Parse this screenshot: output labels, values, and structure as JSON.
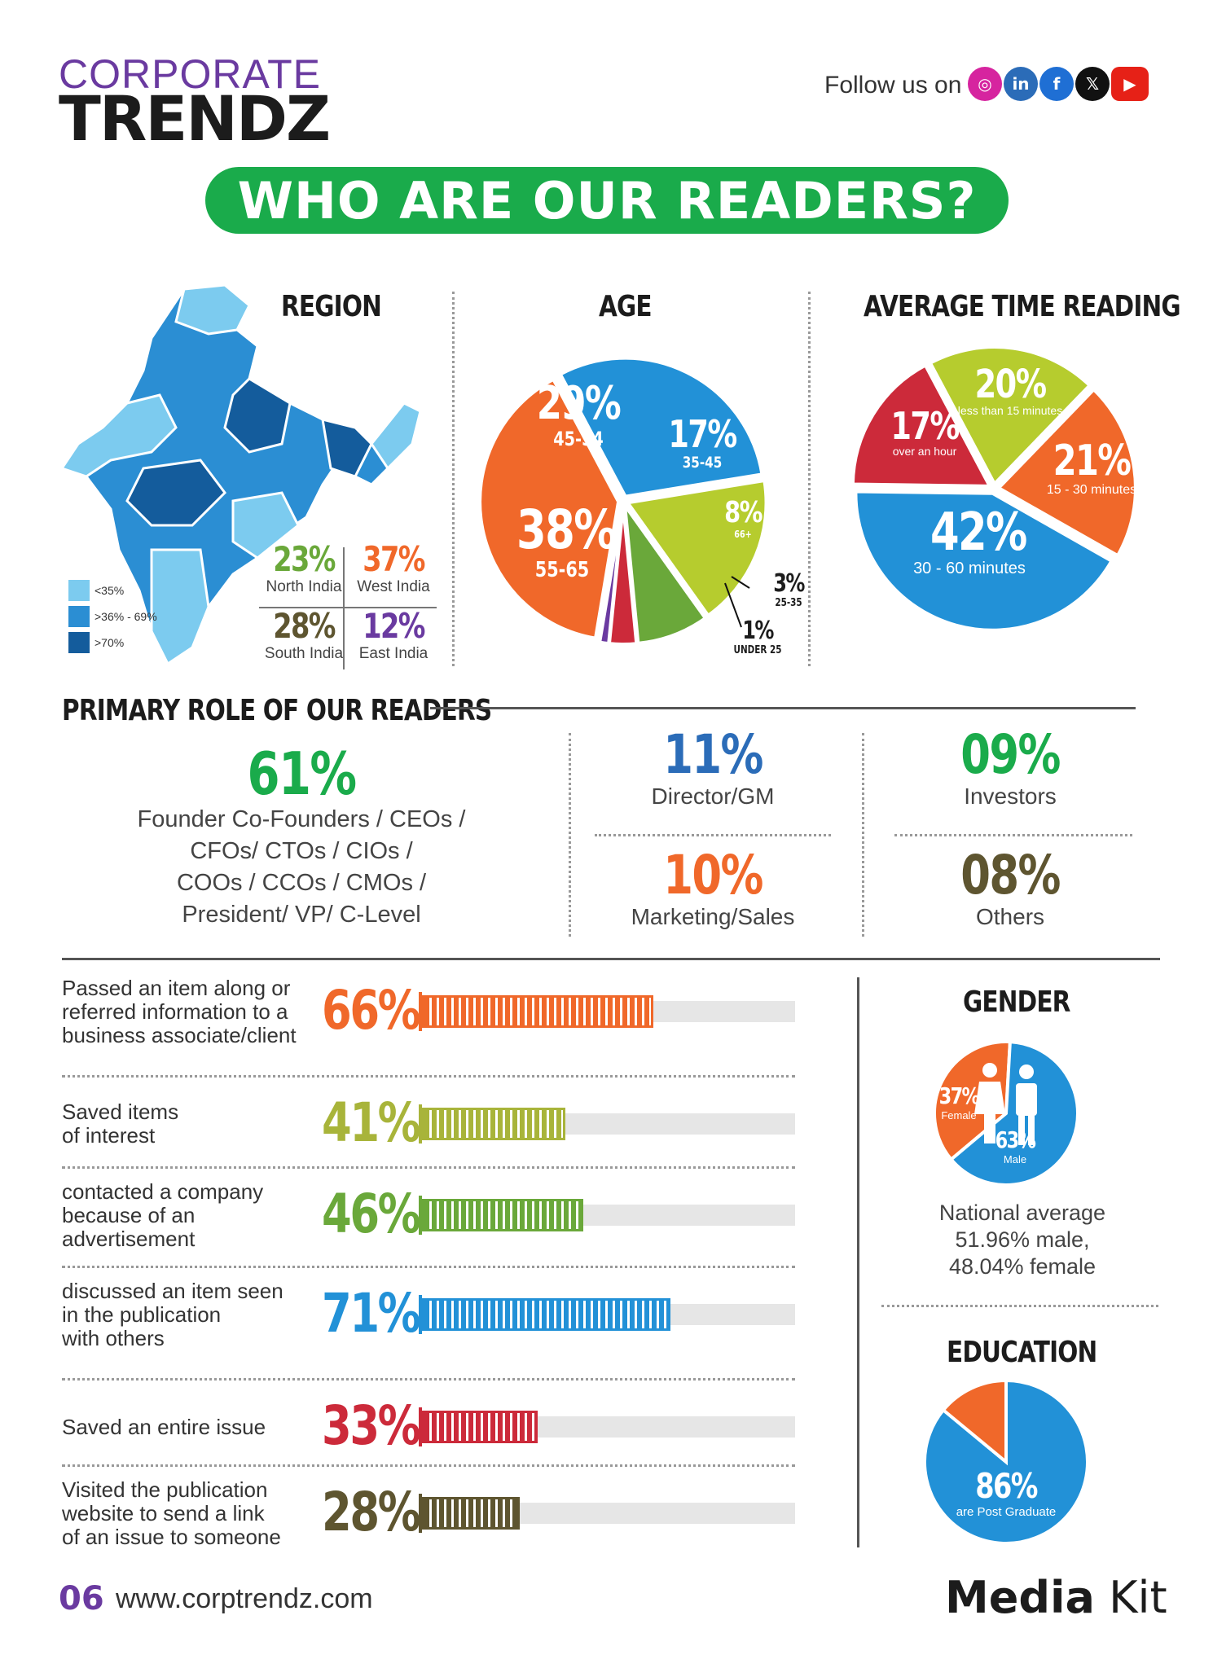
{
  "header": {
    "logo_top": "CORPORATE",
    "logo_bottom": "TRENDZ",
    "follow_label": "Follow us on",
    "social": [
      {
        "name": "instagram-icon",
        "glyph": "◎",
        "color": "#d6249f"
      },
      {
        "name": "linkedin-icon",
        "glyph": "in",
        "color": "#2b6cb8"
      },
      {
        "name": "facebook-icon",
        "glyph": "f",
        "color": "#1f6fd4"
      },
      {
        "name": "x-icon",
        "glyph": "𝕏",
        "color": "#111111"
      },
      {
        "name": "youtube-icon",
        "glyph": "▶",
        "color": "#e62117"
      }
    ]
  },
  "banner": "WHO ARE OUR READERS?",
  "region": {
    "title": "REGION",
    "legend": [
      {
        "label": "<35%",
        "color": "#7ccbef"
      },
      {
        "label": ">36% - 69%",
        "color": "#2b8ed3"
      },
      {
        "label": ">70%",
        "color": "#145c9c"
      }
    ],
    "stats": [
      {
        "value": "23%",
        "label": "North India",
        "color": "#6aa83a"
      },
      {
        "value": "37%",
        "label": "West India",
        "color": "#f0682a"
      },
      {
        "value": "28%",
        "label": "South India",
        "color": "#5e5530"
      },
      {
        "value": "12%",
        "label": "East India",
        "color": "#6a3aa0"
      }
    ]
  },
  "age": {
    "title": "AGE",
    "chart_data": {
      "type": "pie",
      "slices": [
        {
          "label": "45-54",
          "value": 29,
          "color": "#2291d7"
        },
        {
          "label": "35-45",
          "value": 17,
          "color": "#b6cc2e"
        },
        {
          "label": "66+",
          "value": 8,
          "color": "#6aa83a"
        },
        {
          "label": "25-35",
          "value": 3,
          "color": "#cc2a3a"
        },
        {
          "label": "UNDER 25",
          "value": 1,
          "color": "#6a3aa0"
        },
        {
          "label": "55-65",
          "value": 38,
          "color": "#f0682a"
        }
      ],
      "pct": [
        "29%",
        "17%",
        "8%",
        "3%",
        "1%",
        "38%"
      ]
    }
  },
  "avg_time": {
    "title": "AVERAGE TIME READING",
    "chart_data": {
      "type": "pie",
      "slices": [
        {
          "label": "less than 15 minutes",
          "value": 20,
          "color": "#b6cc2e"
        },
        {
          "label": "15 - 30 minutes",
          "value": 21,
          "color": "#f0682a"
        },
        {
          "label": "30 - 60 minutes",
          "value": 42,
          "color": "#2291d7"
        },
        {
          "label": "over an hour",
          "value": 17,
          "color": "#cc2a3a"
        }
      ],
      "pct": [
        "20%",
        "21%",
        "42%",
        "17%"
      ]
    }
  },
  "roles": {
    "title": "PRIMARY ROLE OF OUR READERS",
    "main": {
      "value": "61%",
      "color": "#1aab4b",
      "lines": [
        "Founder Co-Founders / CEOs /",
        "CFOs/ CTOs / CIOs /",
        "COOs / CCOs  / CMOs /",
        "President/ VP/ C-Level"
      ]
    },
    "items": [
      {
        "value": "11%",
        "label": "Director/GM",
        "color": "#2b6cb8"
      },
      {
        "value": "09%",
        "label": "Investors",
        "color": "#1aab4b"
      },
      {
        "value": "10%",
        "label": "Marketing/Sales",
        "color": "#f0682a"
      },
      {
        "value": "08%",
        "label": "Others",
        "color": "#5e5530"
      }
    ]
  },
  "engagement": {
    "chart_data": {
      "type": "bar",
      "categories": [
        "Passed an item along or referred information to a business associate/client",
        "Saved items of interest",
        "contacted a company because of an advertisement",
        "discussed an item seen in the publication with others",
        "Saved an entire issue",
        "Visited the publication website to send a link of an issue to someone"
      ],
      "values": [
        66,
        41,
        46,
        71,
        33,
        28
      ],
      "ylim": [
        0,
        100
      ]
    },
    "rows": [
      {
        "lines": [
          "Passed an item along or",
          "referred information to a",
          "business associate/client"
        ],
        "pct": "66%",
        "color": "#f0682a"
      },
      {
        "lines": [
          "Saved items",
          "of interest"
        ],
        "pct": "41%",
        "color": "#a8b43a"
      },
      {
        "lines": [
          "contacted a company",
          "because of an",
          "advertisement"
        ],
        "pct": "46%",
        "color": "#6aa83a"
      },
      {
        "lines": [
          "discussed an item seen",
          "in the publication",
          "with others"
        ],
        "pct": "71%",
        "color": "#2291d7"
      },
      {
        "lines": [
          "Saved an entire issue"
        ],
        "pct": "33%",
        "color": "#cc2a3a"
      },
      {
        "lines": [
          "Visited the publication",
          "website to send a link",
          "of an issue to someone"
        ],
        "pct": "28%",
        "color": "#5e5530"
      }
    ]
  },
  "gender": {
    "title": "GENDER",
    "chart_data": {
      "type": "pie",
      "slices": [
        {
          "label": "Female",
          "value": 37,
          "color": "#f0682a"
        },
        {
          "label": "Male",
          "value": 63,
          "color": "#2291d7"
        }
      ],
      "pct": [
        "37%",
        "63%"
      ]
    },
    "note": [
      "National average",
      "51.96% male,",
      "48.04% female"
    ]
  },
  "education": {
    "title": "EDUCATION",
    "chart_data": {
      "type": "pie",
      "slices": [
        {
          "label": "are Post Graduate",
          "value": 86,
          "color": "#2291d7"
        },
        {
          "label": "",
          "value": 14,
          "color": "#f0682a"
        }
      ],
      "pct": "86%"
    }
  },
  "footer": {
    "page": "06",
    "url": "www.corptrendz.com",
    "brand_bold": "Media",
    "brand_light": "Kit"
  }
}
